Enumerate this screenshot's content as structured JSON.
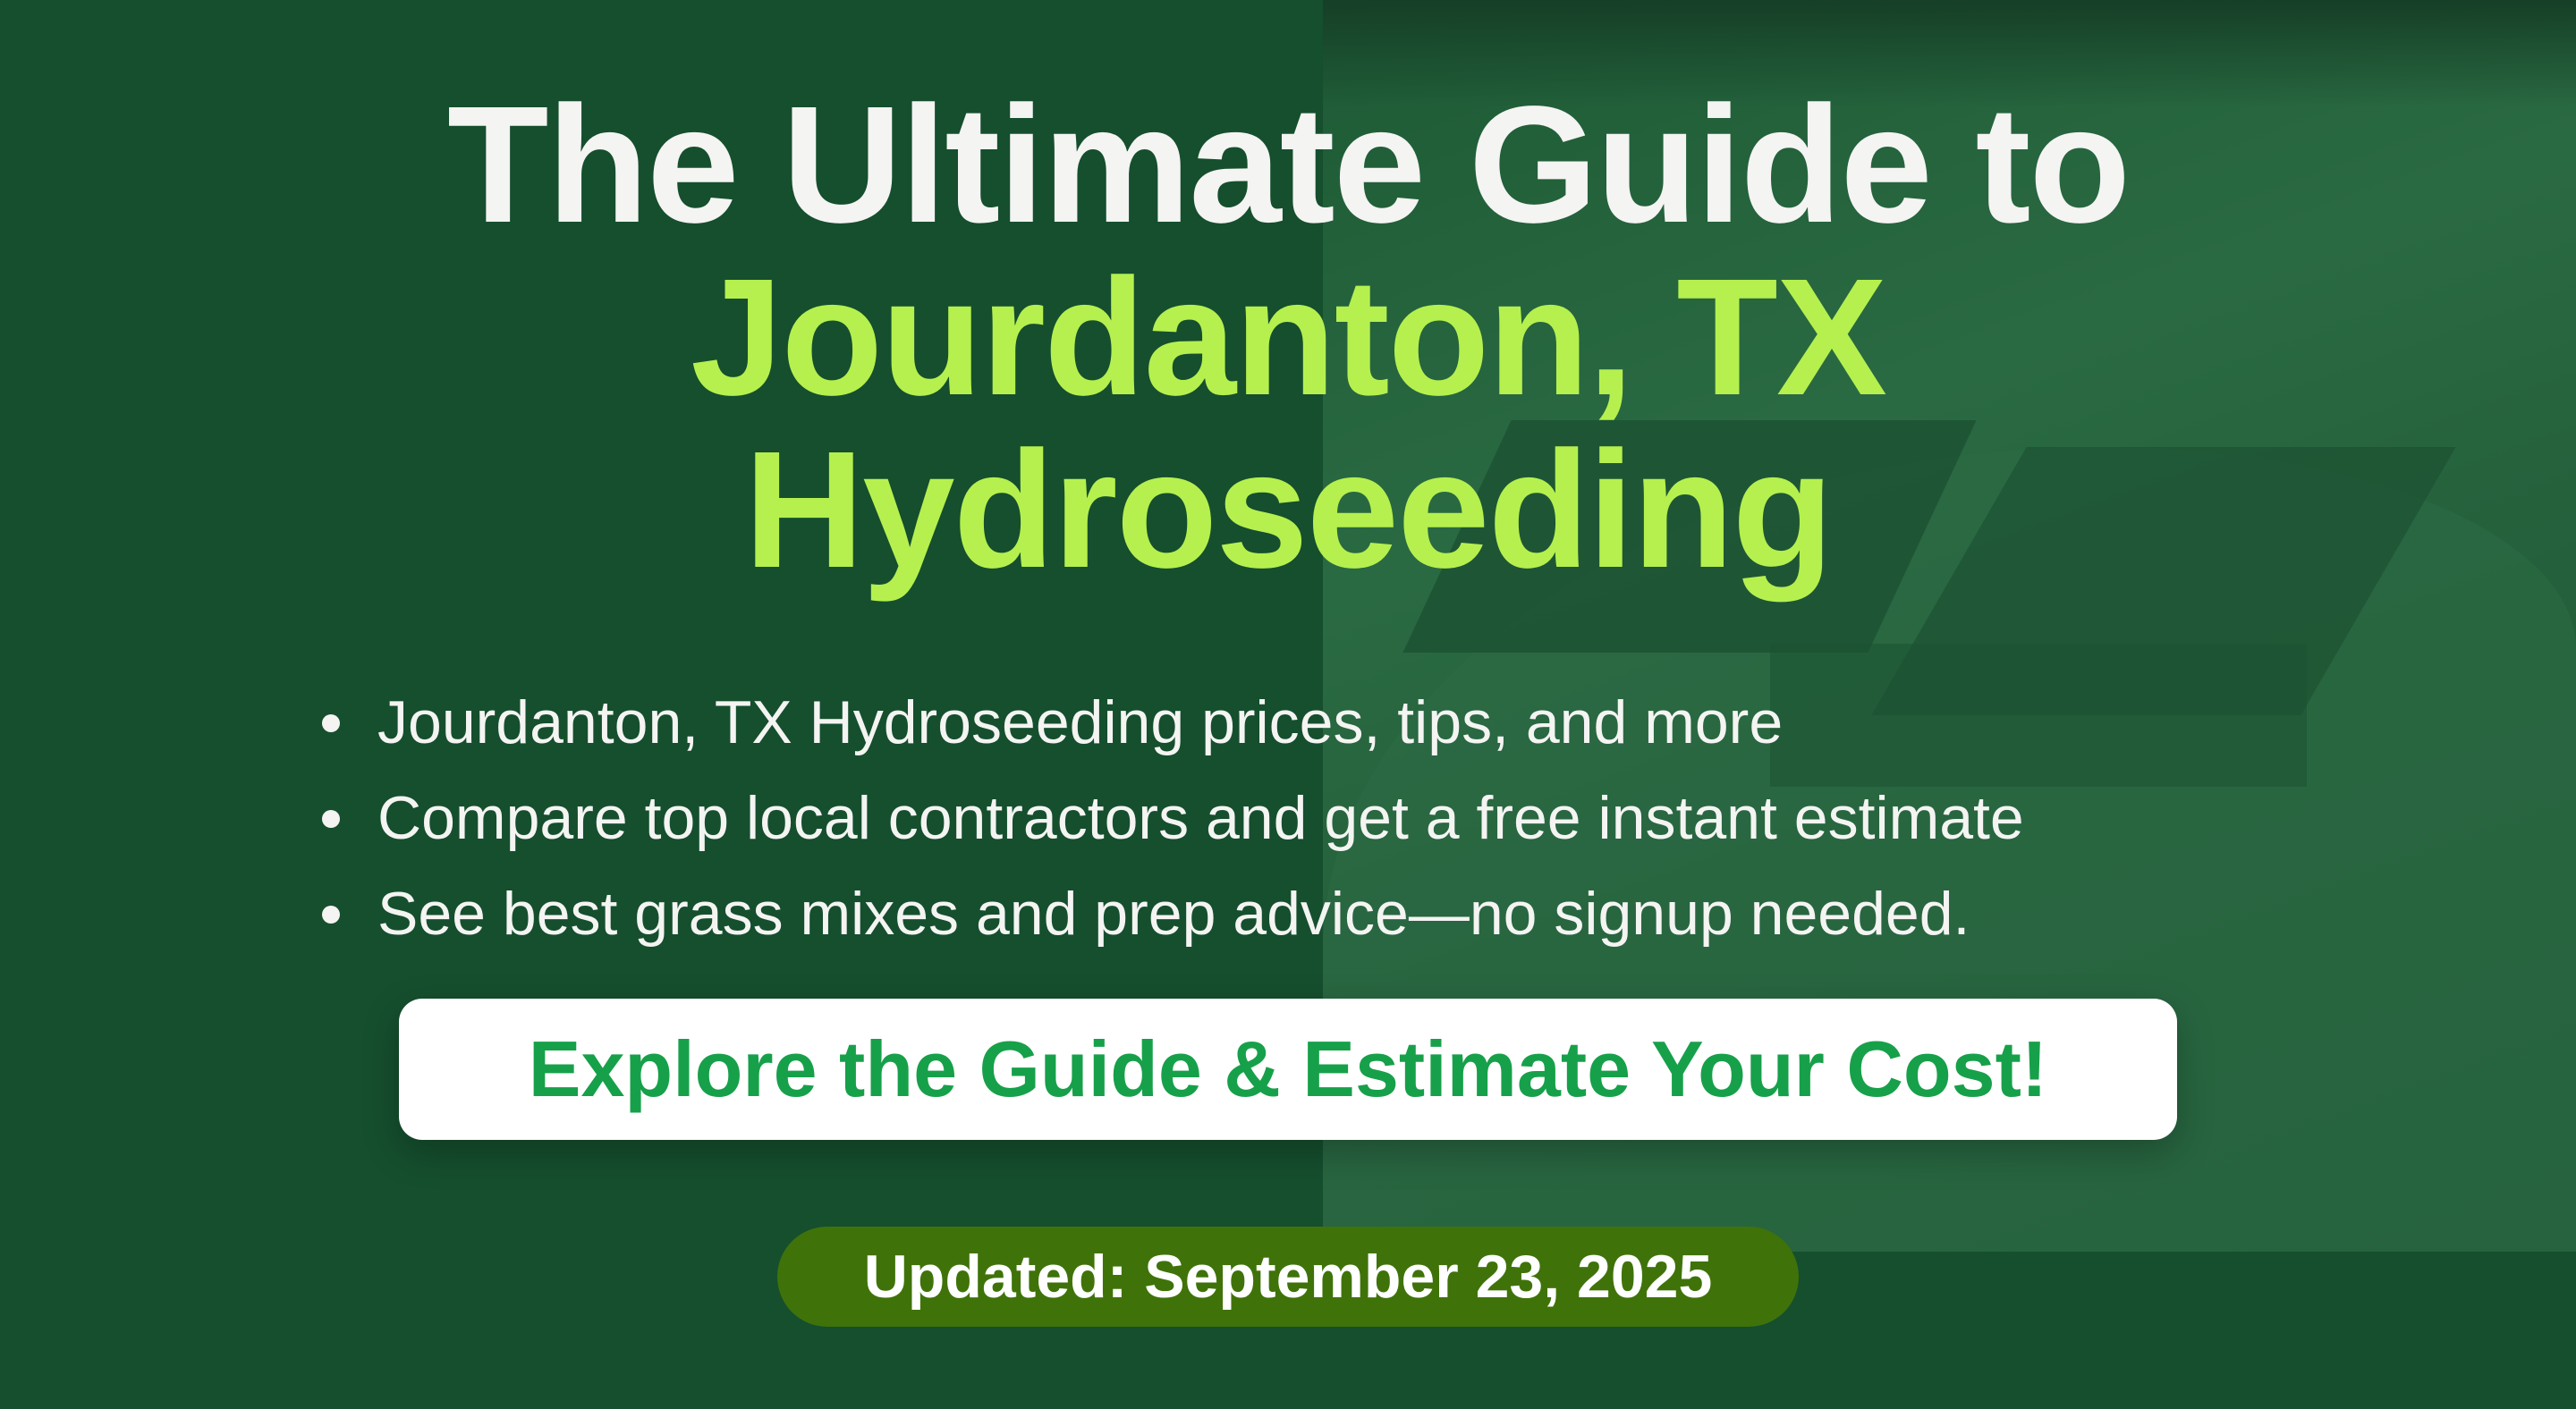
{
  "title": {
    "line1": "The Ultimate Guide to",
    "line2": "Jourdanton, TX",
    "line3": "Hydroseeding"
  },
  "bullets": [
    "Jourdanton, TX Hydroseeding prices, tips, and more",
    "Compare top local contractors and get a free instant estimate",
    "See best grass mixes and prep advice—no signup needed."
  ],
  "cta_label": "Explore the Guide & Estimate Your Cost!",
  "updated_label": "Updated: September 23, 2025",
  "colors": {
    "background": "#154f2e",
    "title_white": "#f4f4f2",
    "title_accent": "#b5f04f",
    "cta_text": "#17a04a",
    "badge": "#3f730a"
  }
}
